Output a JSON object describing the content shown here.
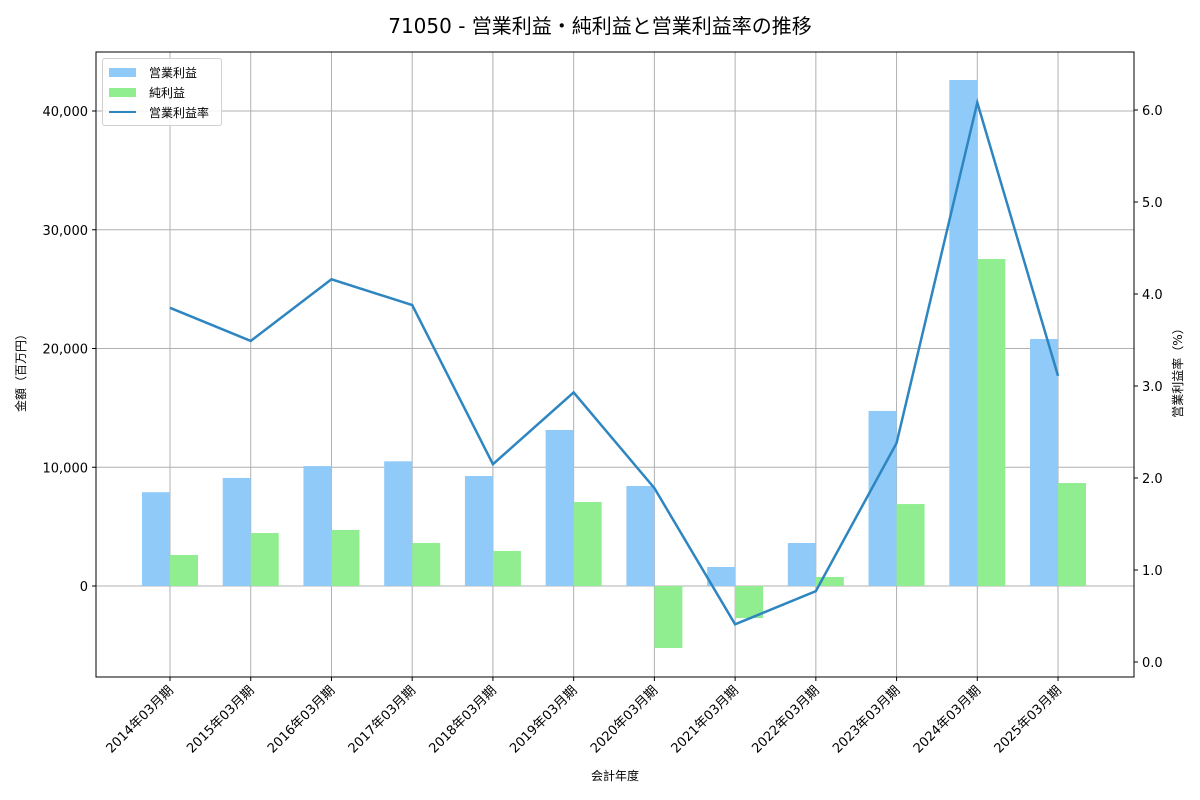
{
  "title": "71050 - 営業利益・純利益と営業利益率の推移",
  "legend": {
    "items": [
      {
        "label": "営業利益",
        "color": "#90CAF9",
        "kind": "bar"
      },
      {
        "label": "純利益",
        "color": "#90EE90",
        "kind": "bar"
      },
      {
        "label": "営業利益率",
        "color": "#2E86C1",
        "kind": "line"
      }
    ]
  },
  "axes": {
    "xlabel": "会計年度",
    "ylabel_left": "金額（百万円）",
    "ylabel_right": "営業利益率（%）",
    "left_ticks": [
      "0",
      "10,000",
      "20,000",
      "30,000",
      "40,000"
    ],
    "right_ticks": [
      "0.0",
      "1.0",
      "2.0",
      "3.0",
      "4.0",
      "5.0",
      "6.0"
    ]
  },
  "chart_data": {
    "type": "bar",
    "title": "71050 - 営業利益・純利益と営業利益率の推移",
    "xlabel": "会計年度",
    "ylabel": "金額（百万円）",
    "ylabel_right": "営業利益率（%）",
    "categories": [
      "2014年03月期",
      "2015年03月期",
      "2016年03月期",
      "2017年03月期",
      "2018年03月期",
      "2019年03月期",
      "2020年03月期",
      "2021年03月期",
      "2022年03月期",
      "2023年03月期",
      "2024年03月期",
      "2025年03月期"
    ],
    "series": [
      {
        "name": "営業利益",
        "type": "bar",
        "axis": "left",
        "color": "#90CAF9",
        "values": [
          7900,
          9100,
          10100,
          10500,
          9260,
          13140,
          8420,
          1600,
          3620,
          14740,
          42610,
          20800
        ]
      },
      {
        "name": "純利益",
        "type": "bar",
        "axis": "left",
        "color": "#90EE90",
        "values": [
          2610,
          4460,
          4720,
          3620,
          2950,
          7070,
          -5220,
          -2700,
          760,
          6900,
          27540,
          8670
        ]
      },
      {
        "name": "営業利益率",
        "type": "line",
        "axis": "right",
        "color": "#2E86C1",
        "values": [
          3.85,
          3.49,
          4.16,
          3.88,
          2.15,
          2.93,
          1.89,
          0.41,
          0.77,
          2.38,
          6.08,
          3.11
        ]
      }
    ],
    "ylim": [
      -7700,
      45000
    ],
    "ylim_right": [
      -0.15,
      6.6
    ],
    "grid": true,
    "legend_position": "upper left"
  }
}
